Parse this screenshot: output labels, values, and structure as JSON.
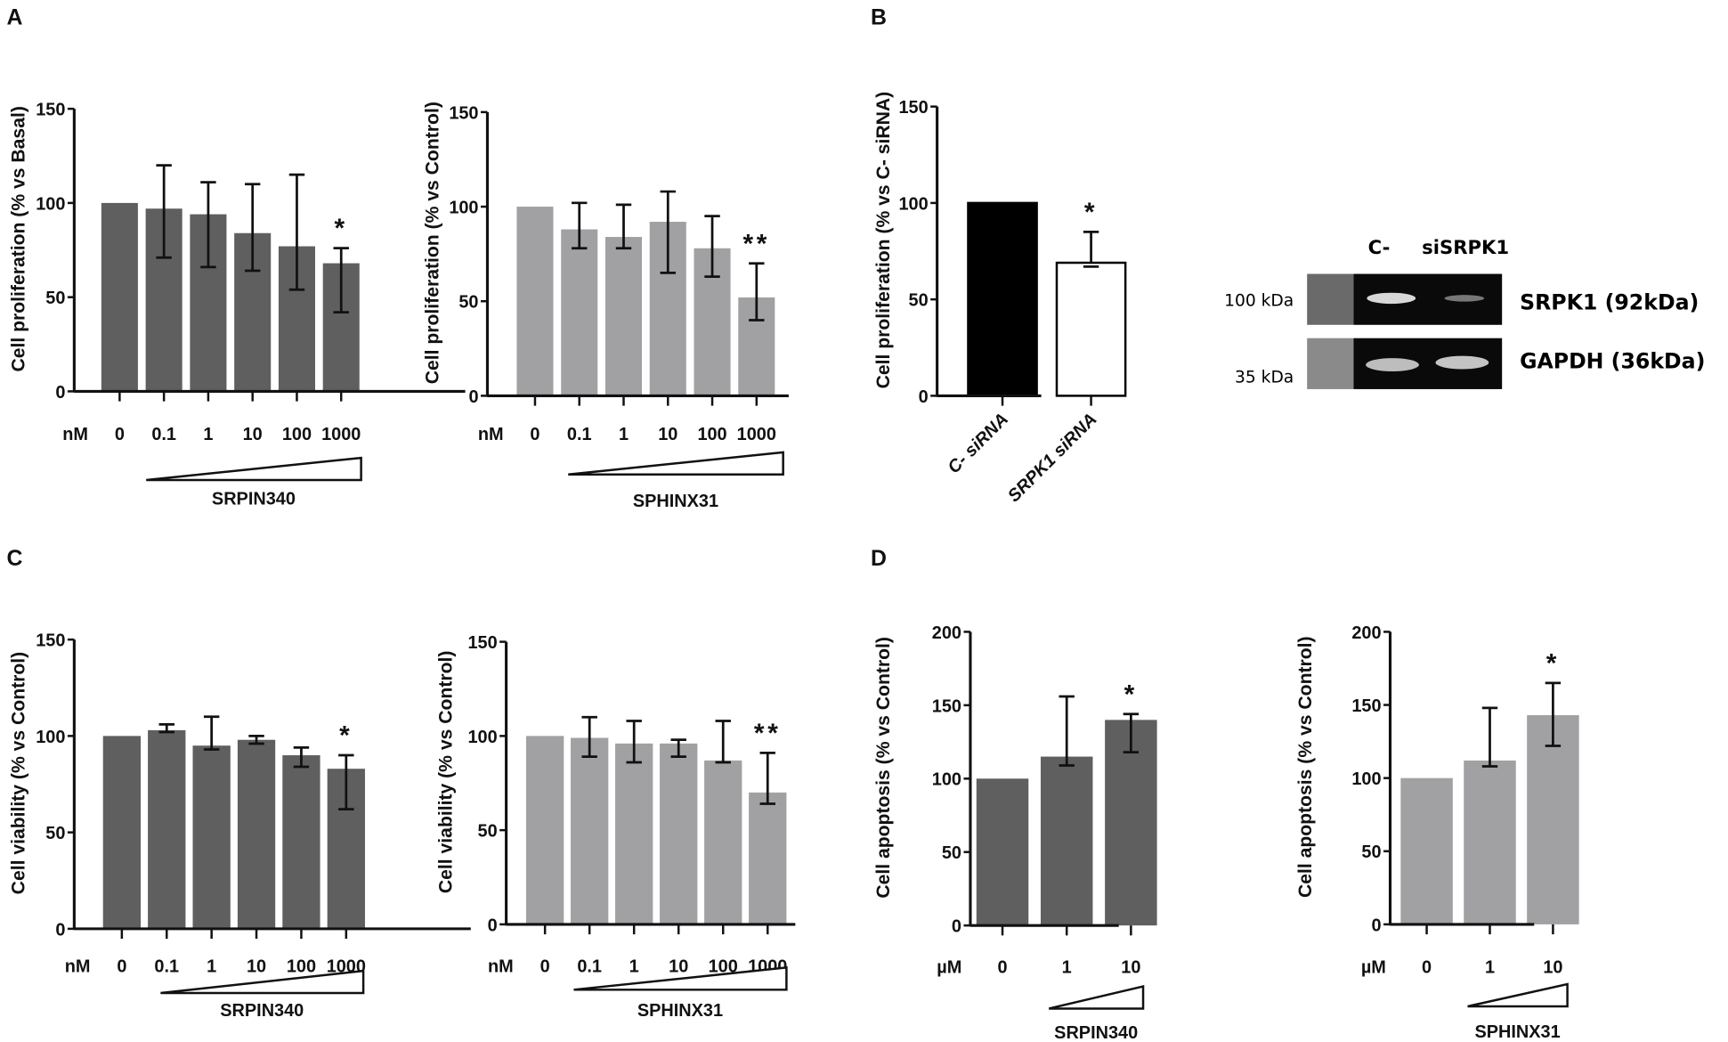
{
  "panels": {
    "a": "A",
    "b": "B",
    "c": "C",
    "d": "D"
  },
  "blot": {
    "lanes": [
      "C-",
      "siSRPK1"
    ],
    "markers": [
      "100 kDa",
      "35 kDa"
    ],
    "proteins": [
      "SRPK1 (92kDa)",
      "GAPDH (36kDa)"
    ]
  },
  "chart_data": [
    {
      "id": "A1",
      "type": "bar",
      "ylabel": "Cell proliferation (% vs Basal)",
      "unit": "nM",
      "categories": [
        "0",
        "0.1",
        "1",
        "10",
        "100",
        "1000"
      ],
      "values": [
        100,
        97,
        94,
        84,
        77,
        68
      ],
      "err_low": [
        null,
        71,
        66,
        64,
        54,
        42
      ],
      "err_high": [
        null,
        120,
        111,
        110,
        115,
        76
      ],
      "significance": [
        "",
        "",
        "",
        "",
        "",
        "*"
      ],
      "drug": "SRPIN340",
      "ylim": [
        0,
        150
      ],
      "yticks": [
        "0",
        "50",
        "100",
        "150"
      ],
      "color": "#5f5f5f"
    },
    {
      "id": "A2",
      "type": "bar",
      "ylabel": "Cell proliferation (% vs Control)",
      "unit": "nM",
      "categories": [
        "0",
        "0.1",
        "1",
        "10",
        "100",
        "1000"
      ],
      "values": [
        100,
        88,
        84,
        92,
        78,
        52
      ],
      "err_low": [
        null,
        78,
        78,
        65,
        63,
        40
      ],
      "err_high": [
        null,
        102,
        101,
        108,
        95,
        70
      ],
      "significance": [
        "",
        "",
        "",
        "",
        "",
        "**"
      ],
      "drug": "SPHINX31",
      "ylim": [
        0,
        150
      ],
      "yticks": [
        "0",
        "50",
        "100",
        "150"
      ],
      "color": "#a1a1a4"
    },
    {
      "id": "B",
      "type": "bar",
      "ylabel": "Cell proliferation (% vs C- siRNA)",
      "unit": "",
      "categories": [
        "C- siRNA",
        "SRPK1 siRNA"
      ],
      "values": [
        100,
        69
      ],
      "err_low": [
        null,
        67
      ],
      "err_high": [
        null,
        85
      ],
      "significance": [
        "",
        "*"
      ],
      "drug": "",
      "ylim": [
        0,
        150
      ],
      "yticks": [
        "0",
        "50",
        "100",
        "150"
      ],
      "colors": [
        "#000000",
        "#ffffff"
      ]
    },
    {
      "id": "C1",
      "type": "bar",
      "ylabel": "Cell viability (% vs Control)",
      "unit": "nM",
      "categories": [
        "0",
        "0.1",
        "1",
        "10",
        "100",
        "1000"
      ],
      "values": [
        100,
        103,
        95,
        98,
        90,
        83
      ],
      "err_low": [
        null,
        102,
        93,
        96,
        84,
        62
      ],
      "err_high": [
        null,
        106,
        110,
        100,
        94,
        90
      ],
      "significance": [
        "",
        "",
        "",
        "",
        "",
        "*"
      ],
      "drug": "SRPIN340",
      "ylim": [
        0,
        150
      ],
      "yticks": [
        "0",
        "50",
        "100",
        "150"
      ],
      "color": "#5f5f5f"
    },
    {
      "id": "C2",
      "type": "bar",
      "ylabel": "Cell viability (% vs Control)",
      "unit": "nM",
      "categories": [
        "0",
        "0.1",
        "1",
        "10",
        "100",
        "1000"
      ],
      "values": [
        100,
        99,
        96,
        96,
        87,
        70
      ],
      "err_low": [
        null,
        89,
        86,
        89,
        86,
        64
      ],
      "err_high": [
        null,
        110,
        108,
        98,
        108,
        91
      ],
      "significance": [
        "",
        "",
        "",
        "",
        "",
        "**"
      ],
      "drug": "SPHINX31",
      "ylim": [
        0,
        150
      ],
      "yticks": [
        "0",
        "50",
        "100",
        "150"
      ],
      "color": "#a1a1a4"
    },
    {
      "id": "D1",
      "type": "bar",
      "ylabel": "Cell apoptosis (% vs Control)",
      "unit": "µM",
      "categories": [
        "0",
        "1",
        "10"
      ],
      "values": [
        100,
        115,
        140
      ],
      "err_low": [
        null,
        109,
        118
      ],
      "err_high": [
        null,
        156,
        144
      ],
      "significance": [
        "",
        "",
        "*"
      ],
      "drug": "SRPIN340",
      "ylim": [
        0,
        200
      ],
      "yticks": [
        "0",
        "50",
        "100",
        "150",
        "200"
      ],
      "color": "#5f5f5f"
    },
    {
      "id": "D2",
      "type": "bar",
      "ylabel": "Cell apoptosis (% vs Control)",
      "unit": "µM",
      "categories": [
        "0",
        "1",
        "10"
      ],
      "values": [
        100,
        112,
        143
      ],
      "err_low": [
        null,
        108,
        122
      ],
      "err_high": [
        null,
        148,
        165
      ],
      "significance": [
        "",
        "",
        "*"
      ],
      "drug": "SPHINX31",
      "ylim": [
        0,
        200
      ],
      "yticks": [
        "0",
        "50",
        "100",
        "150",
        "200"
      ],
      "color": "#a1a1a4"
    }
  ]
}
